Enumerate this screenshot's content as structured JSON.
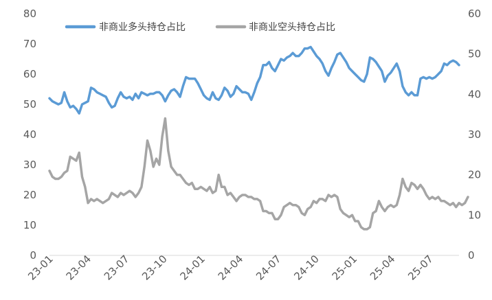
{
  "chart_data": {
    "type": "line",
    "title": "",
    "xlabel": "",
    "ylabel": "",
    "y2label": "",
    "ylim": [
      0,
      80
    ],
    "y2lim": [
      0,
      60
    ],
    "yticks": [
      "0",
      "10",
      "20",
      "30",
      "40",
      "50",
      "60",
      "70",
      "80"
    ],
    "y2ticks": [
      "0",
      "10",
      "20",
      "30",
      "40",
      "50",
      "60"
    ],
    "xticks": [
      "23-01",
      "23-04",
      "23-07",
      "23-10",
      "24-01",
      "24-04",
      "24-07",
      "24-10",
      "25-01",
      "25-04",
      "25-07"
    ],
    "grid": false,
    "legend": "top-left",
    "series": [
      {
        "name": "非商业多头持仓占比",
        "axis": "left",
        "color": "#5B9BD5",
        "values": [
          52,
          51,
          50.5,
          50,
          50.5,
          54,
          51,
          49,
          49.5,
          48.5,
          47,
          50,
          50.5,
          51,
          55.5,
          55,
          54,
          53.5,
          53,
          52.5,
          50.5,
          49,
          49.5,
          52,
          54,
          52.5,
          52,
          52.5,
          51.5,
          53.5,
          52,
          54,
          53.5,
          53,
          53.5,
          53.5,
          54,
          54,
          53,
          51,
          53,
          54.5,
          55,
          54,
          52.5,
          56,
          59,
          58.5,
          58.5,
          58.5,
          57,
          55,
          53,
          52,
          51.5,
          54,
          52,
          51.5,
          53,
          55.5,
          54.5,
          52.5,
          53.5,
          56,
          55,
          54,
          54,
          53.5,
          51.5,
          54,
          57,
          59,
          63,
          63,
          64,
          62,
          61,
          63,
          65,
          64.5,
          65.5,
          66,
          67,
          66,
          66,
          67,
          68.5,
          68.5,
          69,
          67.5,
          66,
          65,
          63.5,
          61,
          59.5,
          62,
          64,
          66.5,
          67,
          65.5,
          64,
          62,
          61,
          60,
          59,
          58,
          57.5,
          60,
          65.5,
          65,
          64,
          62.5,
          61,
          57.5,
          59.5,
          60.5,
          62,
          63.5,
          61,
          56,
          54,
          53,
          54,
          53,
          53,
          58.5,
          59,
          58.5,
          59,
          58.5,
          59,
          60,
          61,
          63.5,
          63,
          64,
          64.5,
          64,
          63
        ]
      },
      {
        "name": "非商业空头持仓占比",
        "axis": "right",
        "color": "#A5A5A5",
        "values": [
          21,
          19.5,
          19,
          19,
          19.5,
          20.5,
          21,
          24.5,
          24,
          23.5,
          25.5,
          19.5,
          17,
          13,
          14,
          13.5,
          14,
          13.5,
          13,
          13.5,
          14,
          15.5,
          15,
          14.5,
          15.5,
          15,
          15.5,
          16,
          15.5,
          14.5,
          15.5,
          17,
          22,
          28.5,
          26,
          22,
          24,
          22.5,
          29.5,
          34,
          26,
          22,
          21,
          20,
          20,
          19,
          18,
          17.5,
          18,
          16.5,
          16.5,
          17,
          16.5,
          16,
          17,
          15.5,
          16,
          20,
          17,
          17,
          15,
          15.5,
          14.5,
          13.5,
          14.5,
          15,
          15,
          14.5,
          14.5,
          14,
          14,
          13.5,
          11,
          11,
          10.5,
          10.5,
          9,
          9,
          10,
          12,
          12.5,
          13,
          12.5,
          12.5,
          12,
          10.5,
          10,
          11.5,
          12,
          13.5,
          13,
          14,
          14,
          13.5,
          15,
          14.5,
          15,
          14.5,
          11.5,
          10.5,
          10,
          9.5,
          10,
          8.5,
          8.5,
          7,
          6.5,
          6.5,
          7,
          10.5,
          11,
          13.5,
          12,
          11,
          12,
          12.5,
          12,
          12.5,
          15,
          19,
          17,
          16,
          18,
          17.5,
          16.5,
          17.5,
          16.5,
          15,
          14,
          14.5,
          14,
          14.5,
          13.5,
          13.5,
          13,
          12.5,
          13,
          12,
          13,
          12.5,
          13,
          14.5
        ]
      }
    ]
  }
}
